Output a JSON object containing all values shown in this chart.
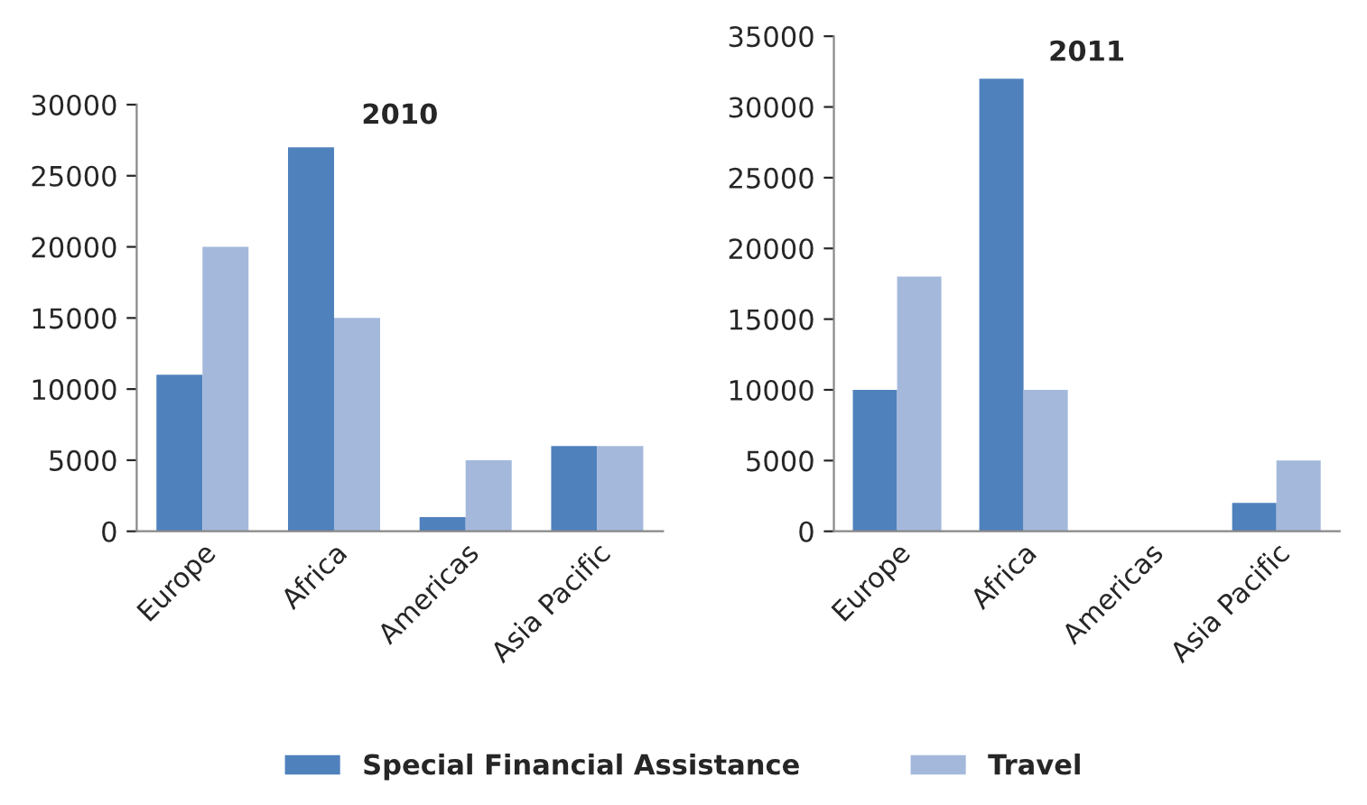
{
  "chart_data": [
    {
      "type": "bar",
      "title": "2010",
      "categories": [
        "Europe",
        "Africa",
        "Americas",
        "Asia Pacific"
      ],
      "series": [
        {
          "name": "Special Financial Assistance",
          "color": "#4f81bd",
          "values": [
            11000,
            27000,
            1000,
            6000
          ]
        },
        {
          "name": "Travel",
          "color": "#a4b8dc",
          "values": [
            20000,
            15000,
            5000,
            6000
          ]
        }
      ],
      "ylim": [
        0,
        30000
      ],
      "yticks": [
        0,
        5000,
        10000,
        15000,
        20000,
        25000,
        30000
      ],
      "grid": false,
      "legend": "bottom"
    },
    {
      "type": "bar",
      "title": "2011",
      "categories": [
        "Europe",
        "Africa",
        "Americas",
        "Asia Pacific"
      ],
      "series": [
        {
          "color": "#4f81bd",
          "values": [
            10000,
            32000,
            null,
            2000
          ]
        },
        {
          "color": "#a4b8dc",
          "values": [
            18000,
            10000,
            null,
            5000
          ]
        }
      ],
      "ylim": [
        0,
        35000
      ],
      "yticks": [
        0,
        5000,
        10000,
        15000,
        20000,
        25000,
        30000,
        35000
      ],
      "grid": false
    }
  ]
}
